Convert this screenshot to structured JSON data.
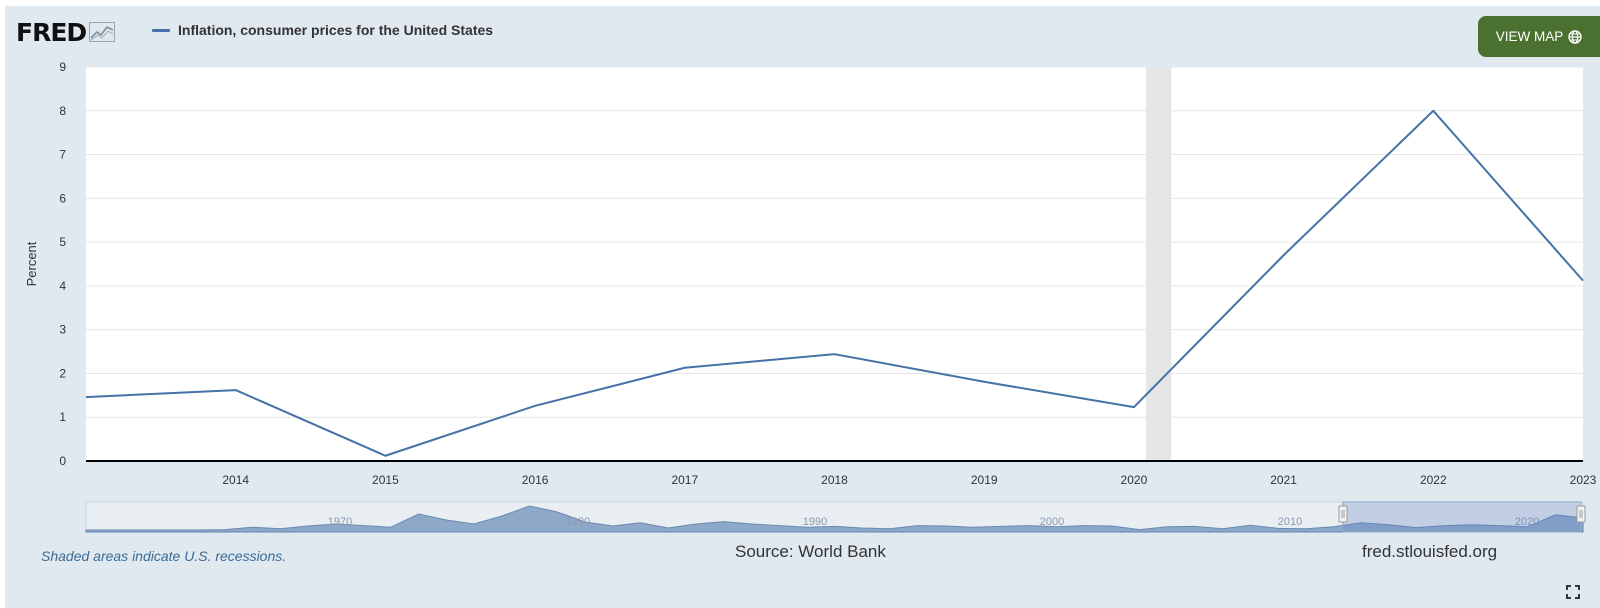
{
  "header": {
    "logo_text": "FRED",
    "legend_label": "Inflation, consumer prices for the United States",
    "view_map_label": "VIEW MAP"
  },
  "footer": {
    "recession_note": "Shaded areas indicate U.S. recessions.",
    "source": "Source: World Bank",
    "site": "fred.stlouisfed.org"
  },
  "colors": {
    "series": "#4572a7",
    "view_map_button": "#4b7131",
    "background": "#e1e9f0",
    "recession_shade": "#e6e6e6"
  },
  "icons": {
    "logo_graph": "line-graph-icon",
    "view_map": "globe-icon",
    "fullscreen": "fullscreen-icon"
  },
  "chart_data": {
    "type": "line",
    "title": "",
    "xlabel": "",
    "ylabel": "Percent",
    "x": [
      2013,
      2014,
      2015,
      2016,
      2017,
      2018,
      2019,
      2020,
      2021,
      2022,
      2023
    ],
    "series": [
      {
        "name": "Inflation, consumer prices for the United States",
        "values": [
          1.46,
          1.62,
          0.12,
          1.26,
          2.13,
          2.44,
          1.81,
          1.23,
          4.7,
          8.0,
          4.12
        ]
      }
    ],
    "xlim": [
      2013,
      2023
    ],
    "ylim": [
      0,
      9
    ],
    "x_ticks": [
      "2014",
      "2015",
      "2016",
      "2017",
      "2018",
      "2019",
      "2020",
      "2021",
      "2022",
      "2023"
    ],
    "y_ticks": [
      "0",
      "1",
      "2",
      "3",
      "4",
      "5",
      "6",
      "7",
      "8",
      "9"
    ],
    "recession_periods": [
      [
        2020.08,
        2020.25
      ]
    ],
    "grid": true,
    "legend_position": "top-left",
    "navigator": {
      "x_labels": [
        "1970",
        "1980",
        "1990",
        "2000",
        "2010",
        "2020"
      ]
    }
  }
}
